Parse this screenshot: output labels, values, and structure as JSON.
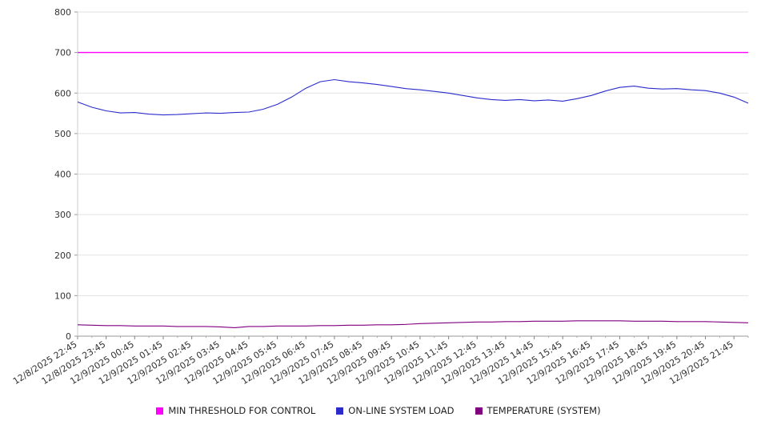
{
  "chart_data": {
    "type": "line",
    "title": "",
    "xlabel": "",
    "ylabel": "",
    "ylim": [
      0,
      800
    ],
    "ytick_step": 100,
    "grid": true,
    "legend_position": "bottom",
    "x_labels": [
      "12/8/2025 22:45",
      "12/8/2025 23:45",
      "12/9/2025 00:45",
      "12/9/2025 01:45",
      "12/9/2025 02:45",
      "12/9/2025 03:45",
      "12/9/2025 04:45",
      "12/9/2025 05:45",
      "12/9/2025 06:45",
      "12/9/2025 07:45",
      "12/9/2025 08:45",
      "12/9/2025 09:45",
      "12/9/2025 10:45",
      "12/9/2025 11:45",
      "12/9/2025 12:45",
      "12/9/2025 13:45",
      "12/9/2025 14:45",
      "12/9/2025 15:45",
      "12/9/2025 16:45",
      "12/9/2025 17:45",
      "12/9/2025 18:45",
      "12/9/2025 19:45",
      "12/9/2025 20:45",
      "12/9/2025 21:45"
    ],
    "series": [
      {
        "name": "MIN THRESHOLD FOR CONTROL",
        "color": "#ff00ff",
        "stroke_width": 1.4,
        "values": [
          700,
          700
        ]
      },
      {
        "name": "ON-LINE SYSTEM LOAD",
        "color": "#2b2bcc",
        "stroke_width": 1.1,
        "values": [
          578,
          565,
          556,
          551,
          552,
          548,
          546,
          547,
          549,
          551,
          550,
          552,
          553,
          560,
          572,
          590,
          612,
          628,
          633,
          628,
          625,
          621,
          616,
          611,
          608,
          604,
          600,
          594,
          588,
          584,
          582,
          584,
          581,
          583,
          580,
          586,
          594,
          605,
          614,
          617,
          612,
          610,
          611,
          608,
          606,
          600,
          590,
          575
        ]
      },
      {
        "name": "TEMPERATURE (SYSTEM)",
        "color": "#800080",
        "stroke_width": 1.1,
        "values": [
          28,
          27,
          26,
          26,
          25,
          25,
          25,
          24,
          24,
          24,
          23,
          21,
          24,
          24,
          25,
          25,
          25,
          26,
          26,
          27,
          27,
          28,
          28,
          29,
          31,
          32,
          33,
          34,
          35,
          35,
          36,
          36,
          37,
          37,
          37,
          38,
          38,
          38,
          38,
          37,
          37,
          37,
          36,
          36,
          36,
          35,
          34,
          33
        ]
      }
    ]
  }
}
